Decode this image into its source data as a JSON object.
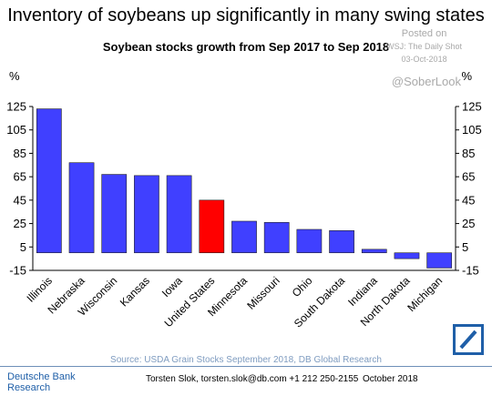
{
  "header": {
    "title": "Inventory of soybeans up significantly in many swing states",
    "subtitle": "Soybean stocks growth from Sep 2017 to Sep 2018"
  },
  "watermark": {
    "posted": "Posted on",
    "source": "WSJ: The Daily Shot",
    "date": "03-Oct-2018",
    "handle": "@SoberLook"
  },
  "footer": {
    "source": "Source: USDA Grain Stocks September 2018, DB Global Research",
    "brand_line1": "Deutsche Bank",
    "brand_line2": "Research",
    "contact": "Torsten Slok, torsten.slok@db.com  +1 212 250-2155",
    "month": "October 2018"
  },
  "colors": {
    "bar": "#4040ff",
    "highlight": "#ff0000",
    "brand": "#1f5fa8"
  },
  "chart_data": {
    "type": "bar",
    "title": "Soybean stocks growth from Sep 2017 to Sep 2018",
    "ylabel": "%",
    "y2label": "%",
    "ylim": [
      -15,
      125
    ],
    "yticks": [
      -15,
      5,
      25,
      45,
      65,
      85,
      105,
      125
    ],
    "grid": false,
    "categories": [
      "Illinois",
      "Nebraska",
      "Wisconsin",
      "Kansas",
      "Iowa",
      "United States",
      "Minnesota",
      "Missouri",
      "Ohio",
      "South Dakota",
      "Indiana",
      "North Dakota",
      "Michigan"
    ],
    "values": [
      123,
      77,
      67,
      66,
      66,
      45,
      27,
      26,
      20,
      19,
      3,
      -5,
      -13
    ],
    "highlight": "United States"
  }
}
